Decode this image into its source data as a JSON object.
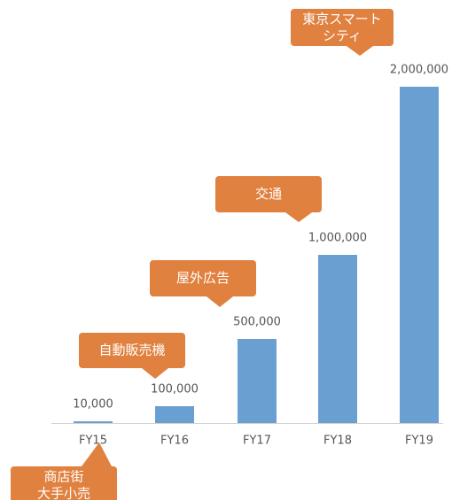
{
  "chart_data": {
    "type": "bar",
    "categories": [
      "FY15",
      "FY16",
      "FY17",
      "FY18",
      "FY19"
    ],
    "values": [
      10000,
      100000,
      500000,
      1000000,
      2000000
    ],
    "value_labels": [
      "10,000",
      "100,000",
      "500,000",
      "1,000,000",
      "2,000,000"
    ],
    "color": "#6a9fd2",
    "ylim": [
      0,
      2000000
    ],
    "grid": false,
    "annotations": [
      {
        "lines": [
          "商店街",
          "大手小売"
        ],
        "color": "#e0813f"
      },
      {
        "lines": [
          "自動販売機"
        ],
        "color": "#e0813f"
      },
      {
        "lines": [
          "屋外広告"
        ],
        "color": "#e0813f"
      },
      {
        "lines": [
          "交通"
        ],
        "color": "#e0813f"
      },
      {
        "lines": [
          "東京スマート",
          "シティ"
        ],
        "color": "#e0813f"
      }
    ]
  }
}
